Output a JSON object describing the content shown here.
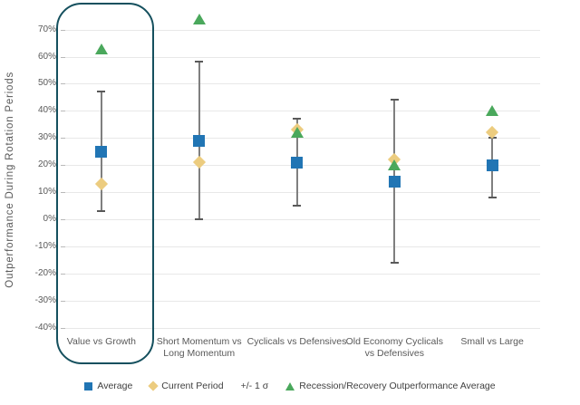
{
  "page": {
    "background": "#ffffff"
  },
  "chart_data": {
    "type": "scatter",
    "title": "",
    "ylabel": "Outperformance During Rotation Periods",
    "xlabel": "",
    "categories": [
      "Value vs Growth",
      "Short Momentum vs Long Momentum",
      "Cyclicals vs Defensives",
      "Old Economy Cyclicals vs Defensives",
      "Small vs Large"
    ],
    "series": [
      {
        "name": "Average",
        "marker": "square",
        "color": "#2175b4",
        "values": [
          25,
          29,
          21,
          14,
          20
        ]
      },
      {
        "name": "Current Period",
        "marker": "diamond",
        "color": "#eccc7f",
        "values": [
          13,
          21,
          33,
          22,
          32
        ]
      },
      {
        "name": "Recession/Recovery Outperformance Average",
        "marker": "triangle",
        "color": "#4aa85c",
        "values": [
          63,
          74,
          32,
          20,
          40
        ]
      }
    ],
    "error_bars": {
      "name": "+/- 1 σ",
      "color": "#7f7f7f",
      "high": [
        47,
        58,
        37,
        44,
        30
      ],
      "low": [
        3,
        0,
        5,
        -16,
        8
      ]
    },
    "yticks": [
      70,
      60,
      50,
      40,
      30,
      20,
      10,
      0,
      -10,
      -20,
      -30,
      -40
    ],
    "ytick_labels": [
      "70%",
      "60%",
      "50%",
      "40%",
      "30%",
      "20%",
      "10%",
      "0%",
      "-10%",
      "-20%",
      "-30%",
      "-40%"
    ],
    "ylim": [
      -44,
      77
    ],
    "grid": true,
    "legend_position": "bottom",
    "highlight": {
      "category": "Value vs Growth",
      "category_index": 0,
      "color": "#15505e"
    }
  },
  "legend": {
    "items": [
      {
        "label": "Average",
        "icon": "square-icon",
        "color": "#2175b4"
      },
      {
        "label": "Current Period",
        "icon": "diamond-icon",
        "color": "#eccc7f"
      },
      {
        "label": "+/- 1 σ",
        "icon": "none",
        "color": ""
      },
      {
        "label": "Recession/Recovery Outperformance Average",
        "icon": "triangle-icon",
        "color": "#4aa85c"
      }
    ]
  }
}
